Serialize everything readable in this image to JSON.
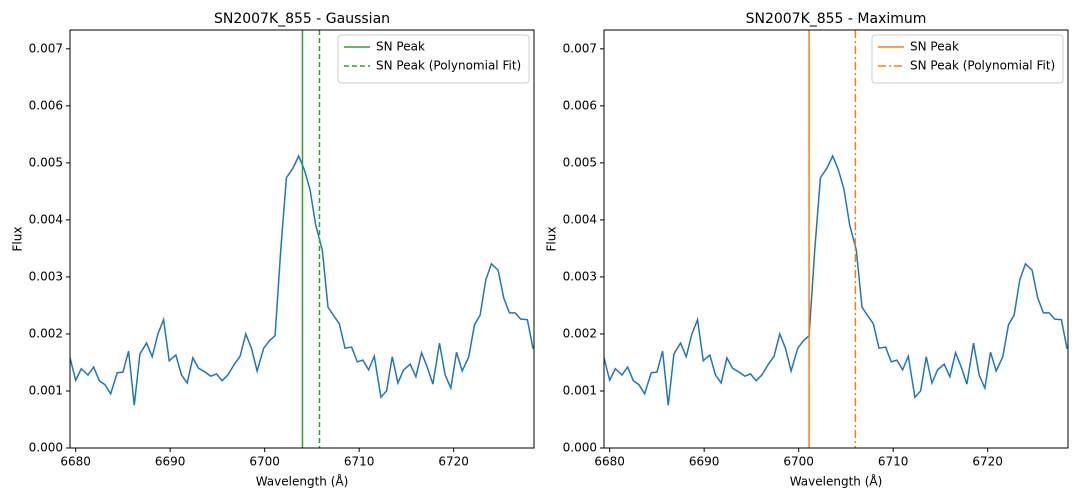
{
  "chart_data": [
    {
      "type": "line",
      "title": "SN2007K_855 - Gaussian",
      "xlabel": "Wavelength (Å)",
      "ylabel": "Flux",
      "xlim": [
        6679.4,
        6728.5
      ],
      "ylim": [
        0,
        0.00733
      ],
      "xticks": [
        6680,
        6690,
        6700,
        6710,
        6720
      ],
      "yticks": [
        {
          "value": 0,
          "label": "0.000"
        },
        {
          "value": 0.001,
          "label": "0.001"
        },
        {
          "value": 0.002,
          "label": "0.002"
        },
        {
          "value": 0.003,
          "label": "0.003"
        },
        {
          "value": 0.004,
          "label": "0.004"
        },
        {
          "value": 0.005,
          "label": "0.005"
        },
        {
          "value": 0.006,
          "label": "0.006"
        },
        {
          "value": 0.007,
          "label": "0.007"
        }
      ],
      "legend_loc": "upper right",
      "series": [
        {
          "color": "#1f77b4",
          "x": [
            6679.4,
            6680.0,
            6680.6,
            6681.3,
            6681.9,
            6682.5,
            6683.1,
            6683.7,
            6684.4,
            6685.0,
            6685.6,
            6686.2,
            6686.8,
            6687.5,
            6688.1,
            6688.7,
            6689.3,
            6689.9,
            6690.6,
            6691.2,
            6691.8,
            6692.4,
            6693.0,
            6693.7,
            6694.3,
            6694.9,
            6695.5,
            6696.1,
            6696.8,
            6697.4,
            6698.0,
            6698.6,
            6699.2,
            6699.9,
            6700.5,
            6701.1,
            6701.7,
            6702.3,
            6703.0,
            6703.6,
            6704.2,
            6704.8,
            6705.4,
            6706.1,
            6706.7,
            6707.3,
            6707.9,
            6708.5,
            6709.2,
            6709.8,
            6710.4,
            6711.0,
            6711.6,
            6712.3,
            6712.9,
            6713.5,
            6714.1,
            6714.7,
            6715.4,
            6716.0,
            6716.6,
            6717.2,
            6717.8,
            6718.5,
            6719.1,
            6719.7,
            6720.3,
            6720.9,
            6721.6,
            6722.2,
            6722.8,
            6723.4,
            6724.0,
            6724.7,
            6725.3,
            6725.9,
            6726.5,
            6727.1,
            6727.8,
            6728.4
          ],
          "values": [
            0.00158,
            0.00119,
            0.00139,
            0.00128,
            0.00142,
            0.00118,
            0.00111,
            0.00095,
            0.00132,
            0.00133,
            0.0017,
            0.00075,
            0.00165,
            0.00184,
            0.0016,
            0.002,
            0.00225,
            0.00153,
            0.00163,
            0.00128,
            0.00114,
            0.00158,
            0.0014,
            0.00133,
            0.00126,
            0.0013,
            0.00118,
            0.00128,
            0.00147,
            0.00161,
            0.002,
            0.00175,
            0.00135,
            0.00175,
            0.00188,
            0.00197,
            0.00347,
            0.00474,
            0.00491,
            0.00512,
            0.00488,
            0.00453,
            0.00391,
            0.00347,
            0.00247,
            0.00232,
            0.00218,
            0.00175,
            0.00177,
            0.00151,
            0.00154,
            0.00137,
            0.00161,
            0.00089,
            0.001,
            0.0016,
            0.00114,
            0.00137,
            0.00147,
            0.00125,
            0.00167,
            0.00142,
            0.00112,
            0.00184,
            0.00128,
            0.00105,
            0.00168,
            0.00135,
            0.0016,
            0.00216,
            0.00233,
            0.00295,
            0.00323,
            0.00312,
            0.00263,
            0.00237,
            0.00237,
            0.00226,
            0.00225,
            0.00174
          ]
        }
      ],
      "vlines": [
        {
          "name": "SN Peak",
          "x": 6704.0,
          "color": "#2ca02c",
          "style": "solid"
        },
        {
          "name": "SN Peak (Polynomial Fit)",
          "x": 6705.8,
          "color": "#2ca02c",
          "style": "dashed"
        }
      ]
    },
    {
      "type": "line",
      "title": "SN2007K_855 - Maximum",
      "xlabel": "Wavelength (Å)",
      "ylabel": "Flux",
      "xlim": [
        6679.4,
        6728.5
      ],
      "ylim": [
        0,
        0.00733
      ],
      "xticks": [
        6680,
        6690,
        6700,
        6710,
        6720
      ],
      "yticks": [
        {
          "value": 0,
          "label": "0.000"
        },
        {
          "value": 0.001,
          "label": "0.001"
        },
        {
          "value": 0.002,
          "label": "0.002"
        },
        {
          "value": 0.003,
          "label": "0.003"
        },
        {
          "value": 0.004,
          "label": "0.004"
        },
        {
          "value": 0.005,
          "label": "0.005"
        },
        {
          "value": 0.006,
          "label": "0.006"
        },
        {
          "value": 0.007,
          "label": "0.007"
        }
      ],
      "legend_loc": "upper right",
      "series": [
        {
          "color": "#1f77b4",
          "x": [
            6679.4,
            6680.0,
            6680.6,
            6681.3,
            6681.9,
            6682.5,
            6683.1,
            6683.7,
            6684.4,
            6685.0,
            6685.6,
            6686.2,
            6686.8,
            6687.5,
            6688.1,
            6688.7,
            6689.3,
            6689.9,
            6690.6,
            6691.2,
            6691.8,
            6692.4,
            6693.0,
            6693.7,
            6694.3,
            6694.9,
            6695.5,
            6696.1,
            6696.8,
            6697.4,
            6698.0,
            6698.6,
            6699.2,
            6699.9,
            6700.5,
            6701.1,
            6701.7,
            6702.3,
            6703.0,
            6703.6,
            6704.2,
            6704.8,
            6705.4,
            6706.1,
            6706.7,
            6707.3,
            6707.9,
            6708.5,
            6709.2,
            6709.8,
            6710.4,
            6711.0,
            6711.6,
            6712.3,
            6712.9,
            6713.5,
            6714.1,
            6714.7,
            6715.4,
            6716.0,
            6716.6,
            6717.2,
            6717.8,
            6718.5,
            6719.1,
            6719.7,
            6720.3,
            6720.9,
            6721.6,
            6722.2,
            6722.8,
            6723.4,
            6724.0,
            6724.7,
            6725.3,
            6725.9,
            6726.5,
            6727.1,
            6727.8,
            6728.4
          ],
          "values": [
            0.00158,
            0.00119,
            0.00139,
            0.00128,
            0.00142,
            0.00118,
            0.00111,
            0.00095,
            0.00132,
            0.00133,
            0.0017,
            0.00075,
            0.00165,
            0.00184,
            0.0016,
            0.002,
            0.00225,
            0.00153,
            0.00163,
            0.00128,
            0.00114,
            0.00158,
            0.0014,
            0.00133,
            0.00126,
            0.0013,
            0.00118,
            0.00128,
            0.00147,
            0.00161,
            0.002,
            0.00175,
            0.00135,
            0.00175,
            0.00188,
            0.00197,
            0.00347,
            0.00474,
            0.00491,
            0.00512,
            0.00488,
            0.00453,
            0.00391,
            0.00347,
            0.00247,
            0.00232,
            0.00218,
            0.00175,
            0.00177,
            0.00151,
            0.00154,
            0.00137,
            0.00161,
            0.00089,
            0.001,
            0.0016,
            0.00114,
            0.00137,
            0.00147,
            0.00125,
            0.00167,
            0.00142,
            0.00112,
            0.00184,
            0.00128,
            0.00105,
            0.00168,
            0.00135,
            0.0016,
            0.00216,
            0.00233,
            0.00295,
            0.00323,
            0.00312,
            0.00263,
            0.00237,
            0.00237,
            0.00226,
            0.00225,
            0.00174
          ]
        }
      ],
      "vlines": [
        {
          "name": "SN Peak",
          "x": 6701.1,
          "color": "#ff7f0e",
          "style": "solid"
        },
        {
          "name": "SN Peak (Polynomial Fit)",
          "x": 6706.0,
          "color": "#ff7f0e",
          "style": "dashdot"
        }
      ]
    }
  ]
}
